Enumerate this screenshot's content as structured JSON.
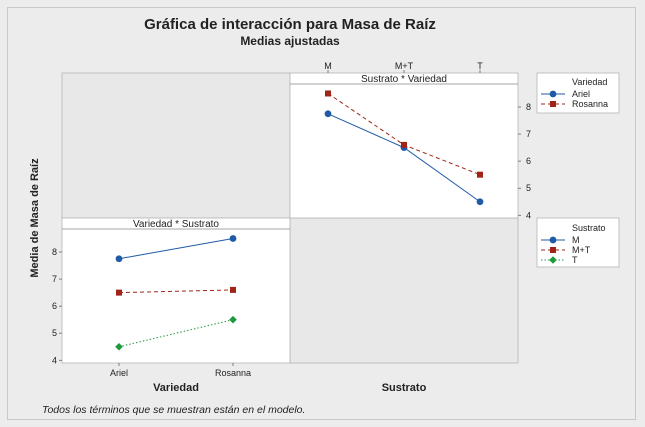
{
  "figure": {
    "title": "Gráfica de interacción para Masa de Raíz",
    "subtitle": "Medias ajustadas",
    "ylabel": "Media de Masa de Raíz",
    "footnote": "Todos los términos que se muestran están en el modelo."
  },
  "colors": {
    "outer_background": "#eeeeee",
    "empty_panel": "#ececec",
    "ariel_or_M": "#1f5aa6",
    "rosanna_or_MT": "#a02518",
    "T": "#1e9a3c"
  },
  "chart_data": [
    {
      "type": "line",
      "title": "Sustrato * Variedad",
      "xlabel": "Sustrato",
      "categories": [
        "M",
        "M+T",
        "T"
      ],
      "yticks": [
        4,
        5,
        6,
        7,
        8
      ],
      "ylim": [
        3.9,
        8.85
      ],
      "legend": {
        "title": "Variedad",
        "placement": "right"
      },
      "series": [
        {
          "name": "Ariel",
          "values": [
            7.75,
            6.5,
            4.5
          ],
          "color": "#1f5aa6",
          "marker": "circle",
          "line": "solid"
        },
        {
          "name": "Rosanna",
          "values": [
            8.5,
            6.6,
            5.5
          ],
          "color": "#a02518",
          "marker": "square",
          "line": "dashed"
        }
      ]
    },
    {
      "type": "line",
      "title": "Variedad * Sustrato",
      "xlabel": "Variedad",
      "categories": [
        "Ariel",
        "Rosanna"
      ],
      "yticks": [
        4,
        5,
        6,
        7,
        8
      ],
      "ylim": [
        3.9,
        8.85
      ],
      "legend": {
        "title": "Sustrato",
        "placement": "right"
      },
      "series": [
        {
          "name": "M",
          "values": [
            7.75,
            8.5
          ],
          "color": "#1f5aa6",
          "marker": "circle",
          "line": "solid"
        },
        {
          "name": "M+T",
          "values": [
            6.5,
            6.6
          ],
          "color": "#a02518",
          "marker": "square",
          "line": "dashed"
        },
        {
          "name": "T",
          "values": [
            4.5,
            5.5
          ],
          "color": "#1e9a3c",
          "marker": "diamond",
          "line": "dotted"
        }
      ]
    }
  ]
}
